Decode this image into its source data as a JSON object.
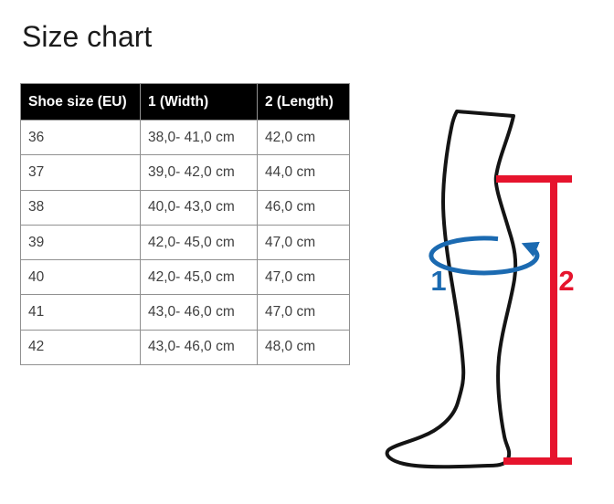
{
  "page": {
    "title": "Size chart"
  },
  "table": {
    "columns": [
      "Shoe size (EU)",
      "1 (Width)",
      "2 (Length)"
    ],
    "rows": [
      [
        "36",
        "38,0- 41,0 cm",
        "42,0 cm"
      ],
      [
        "37",
        "39,0- 42,0 cm",
        "44,0 cm"
      ],
      [
        "38",
        "40,0- 43,0 cm",
        "46,0 cm"
      ],
      [
        "39",
        "42,0- 45,0 cm",
        "47,0 cm"
      ],
      [
        "40",
        "42,0- 45,0 cm",
        "47,0 cm"
      ],
      [
        "41",
        "43,0- 46,0 cm",
        "47,0 cm"
      ],
      [
        "42",
        "43,0- 46,0 cm",
        "48,0 cm"
      ]
    ]
  },
  "diagram": {
    "width_marker_label": "1",
    "length_marker_label": "2"
  },
  "colors": {
    "title_text": "#1b1b1b",
    "header_bg": "#000000",
    "header_text": "#ffffff",
    "body_text": "#3f3f3f",
    "table_border": "#909090",
    "outline": "#141414",
    "width_accent": "#1b6ab1",
    "length_accent": "#e6142d"
  }
}
